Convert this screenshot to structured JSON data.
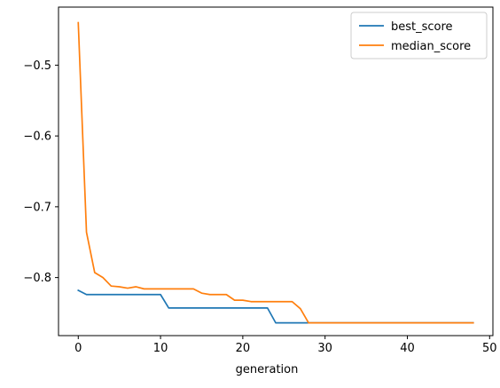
{
  "chart_data": {
    "type": "line",
    "title": "",
    "xlabel": "generation",
    "ylabel": "",
    "xlim": [
      -2.4,
      50.4
    ],
    "ylim": [
      -0.882,
      -0.418
    ],
    "xticks": [
      0,
      10,
      20,
      30,
      40,
      50
    ],
    "yticks": [
      -0.5,
      -0.6,
      -0.7,
      -0.8
    ],
    "xtick_labels": [
      "0",
      "10",
      "20",
      "30",
      "40",
      "50"
    ],
    "ytick_labels": [
      "−0.5",
      "−0.6",
      "−0.7",
      "−0.8"
    ],
    "grid": false,
    "legend": {
      "placement": "top-right"
    },
    "x": [
      0,
      1,
      2,
      3,
      4,
      5,
      6,
      7,
      8,
      9,
      10,
      11,
      12,
      13,
      14,
      15,
      16,
      17,
      18,
      19,
      20,
      21,
      22,
      23,
      24,
      25,
      26,
      27,
      28,
      29,
      30,
      31,
      32,
      33,
      34,
      35,
      36,
      37,
      38,
      39,
      40,
      41,
      42,
      43,
      44,
      45,
      46,
      47,
      48
    ],
    "series": [
      {
        "name": "best_score",
        "color": "#1f77b4",
        "values": [
          -0.818,
          -0.824,
          -0.824,
          -0.824,
          -0.824,
          -0.824,
          -0.824,
          -0.824,
          -0.824,
          -0.824,
          -0.824,
          -0.843,
          -0.843,
          -0.843,
          -0.843,
          -0.843,
          -0.843,
          -0.843,
          -0.843,
          -0.843,
          -0.843,
          -0.843,
          -0.843,
          -0.843,
          -0.864,
          -0.864,
          -0.864,
          -0.864,
          -0.864,
          -0.864,
          -0.864,
          -0.864,
          -0.864,
          -0.864,
          -0.864,
          -0.864,
          -0.864,
          -0.864,
          -0.864,
          -0.864,
          -0.864,
          -0.864,
          -0.864,
          -0.864,
          -0.864,
          -0.864,
          -0.864,
          -0.864,
          -0.864
        ]
      },
      {
        "name": "median_score",
        "color": "#ff7f0e",
        "values": [
          -0.44,
          -0.736,
          -0.793,
          -0.8,
          -0.812,
          -0.813,
          -0.815,
          -0.813,
          -0.816,
          -0.816,
          -0.816,
          -0.816,
          -0.816,
          -0.816,
          -0.816,
          -0.822,
          -0.824,
          -0.824,
          -0.824,
          -0.832,
          -0.832,
          -0.834,
          -0.834,
          -0.834,
          -0.834,
          -0.834,
          -0.834,
          -0.844,
          -0.864,
          -0.864,
          -0.864,
          -0.864,
          -0.864,
          -0.864,
          -0.864,
          -0.864,
          -0.864,
          -0.864,
          -0.864,
          -0.864,
          -0.864,
          -0.864,
          -0.864,
          -0.864,
          -0.864,
          -0.864,
          -0.864,
          -0.864,
          -0.864
        ]
      }
    ]
  }
}
